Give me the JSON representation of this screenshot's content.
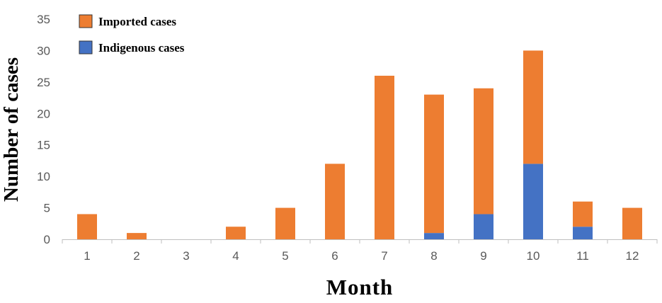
{
  "chart_data": {
    "type": "bar",
    "stacked": true,
    "xlabel": "Month",
    "ylabel": "Number of cases",
    "ylim": [
      0,
      35
    ],
    "yticks": [
      0,
      5,
      10,
      15,
      20,
      25,
      30,
      35
    ],
    "categories": [
      "1",
      "2",
      "3",
      "4",
      "5",
      "6",
      "7",
      "8",
      "9",
      "10",
      "11",
      "12"
    ],
    "series": [
      {
        "name": "Indigenous cases",
        "color": "#4472C4",
        "values": [
          0,
          0,
          0,
          0,
          0,
          0,
          0,
          1,
          4,
          12,
          2,
          0
        ]
      },
      {
        "name": "Imported cases",
        "color": "#ED7D31",
        "values": [
          4,
          1,
          0,
          2,
          5,
          12,
          26,
          22,
          20,
          18,
          4,
          5
        ]
      }
    ],
    "legend": {
      "placement": "top-left",
      "order": [
        "Imported cases",
        "Indigenous cases"
      ]
    },
    "grid": false
  }
}
